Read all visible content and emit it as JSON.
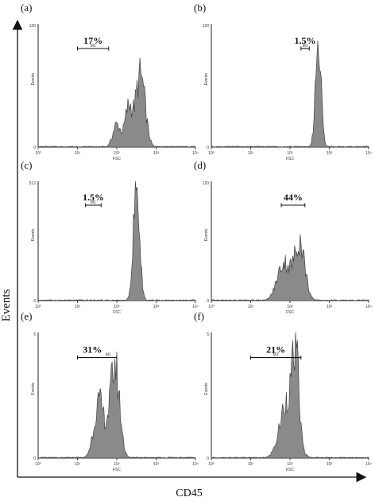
{
  "figure": {
    "y_axis_label": "Events",
    "x_axis_label": "CD45"
  },
  "chart_data": [
    {
      "panel": "(a)",
      "type": "area",
      "marker_label": "M1",
      "gate_percent": "17%",
      "gate_range": [
        10,
        62
      ],
      "xscale": "log",
      "xlim": [
        1,
        10000
      ],
      "ylim": [
        0,
        120
      ],
      "ytick_labels": [
        "0",
        "Events",
        "120"
      ],
      "xtick_labels": [
        "10⁰",
        "10¹",
        "10²",
        "10³",
        "10⁴"
      ],
      "xlabel": "FSC",
      "peaks": [
        {
          "center_log": 2.0,
          "width": 0.1,
          "height": 22
        },
        {
          "center_log": 2.3,
          "width": 0.09,
          "height": 38
        },
        {
          "center_log": 2.6,
          "width": 0.12,
          "height": 70
        }
      ]
    },
    {
      "panel": "(b)",
      "type": "area",
      "marker_label": "M1",
      "gate_percent": "1.5%",
      "gate_range": [
        190,
        310
      ],
      "xscale": "log",
      "xlim": [
        1,
        10000
      ],
      "ylim": [
        0,
        120
      ],
      "ytick_labels": [
        "0",
        "Events",
        "120"
      ],
      "xtick_labels": [
        "10⁰",
        "10¹",
        "10²",
        "10³",
        "10⁴"
      ],
      "xlabel": "FSC",
      "peaks": [
        {
          "center_log": 2.72,
          "width": 0.07,
          "height": 110
        }
      ]
    },
    {
      "panel": "(c)",
      "type": "area",
      "marker_label": "M1",
      "gate_percent": "1.5%",
      "gate_range": [
        16,
        40
      ],
      "xscale": "log",
      "xlim": [
        1,
        10000
      ],
      "ylim": [
        0,
        512
      ],
      "ytick_labels": [
        "0",
        "Events",
        "512"
      ],
      "xtick_labels": [
        "10⁰",
        "10¹",
        "10²",
        "10³",
        "10⁴"
      ],
      "xlabel": "FSC",
      "peaks": [
        {
          "center_log": 2.5,
          "width": 0.08,
          "height": 480
        }
      ]
    },
    {
      "panel": "(d)",
      "type": "area",
      "marker_label": "",
      "gate_percent": "44%",
      "gate_range": [
        60,
        240
      ],
      "xscale": "log",
      "xlim": [
        1,
        10000
      ],
      "ylim": [
        0,
        120
      ],
      "ytick_labels": [
        "0",
        "Events",
        "120"
      ],
      "xtick_labels": [
        "10⁰",
        "10¹",
        "10²",
        "10³",
        "10⁴"
      ],
      "xlabel": "FSC",
      "peaks": [
        {
          "center_log": 1.85,
          "width": 0.17,
          "height": 38
        },
        {
          "center_log": 2.25,
          "width": 0.13,
          "height": 58
        }
      ]
    },
    {
      "panel": "(e)",
      "type": "area",
      "marker_label": "M1",
      "gate_percent": "31%",
      "gate_range": [
        10,
        100
      ],
      "xscale": "log",
      "xlim": [
        1,
        10000
      ],
      "ylim": [
        0,
        5
      ],
      "ytick_labels": [
        "0",
        "Events",
        "5"
      ],
      "xtick_labels": [
        "10⁰",
        "10¹",
        "10²",
        "10³",
        "10⁴"
      ],
      "xlabel": "FSC",
      "peaks": [
        {
          "center_log": 1.55,
          "width": 0.13,
          "height": 2.2
        },
        {
          "center_log": 1.95,
          "width": 0.12,
          "height": 3.7
        }
      ]
    },
    {
      "panel": "(f)",
      "type": "area",
      "marker_label": "M1",
      "gate_percent": "21%",
      "gate_range": [
        10,
        190
      ],
      "xscale": "log",
      "xlim": [
        1,
        10000
      ],
      "ylim": [
        0,
        5
      ],
      "ytick_labels": [
        "0",
        "Events",
        "5"
      ],
      "xtick_labels": [
        "10⁰",
        "10¹",
        "10²",
        "10³",
        "10⁴"
      ],
      "xlabel": "FSC",
      "peaks": [
        {
          "center_log": 1.95,
          "width": 0.19,
          "height": 2.4
        },
        {
          "center_log": 2.15,
          "width": 0.08,
          "height": 3.0
        }
      ]
    }
  ]
}
